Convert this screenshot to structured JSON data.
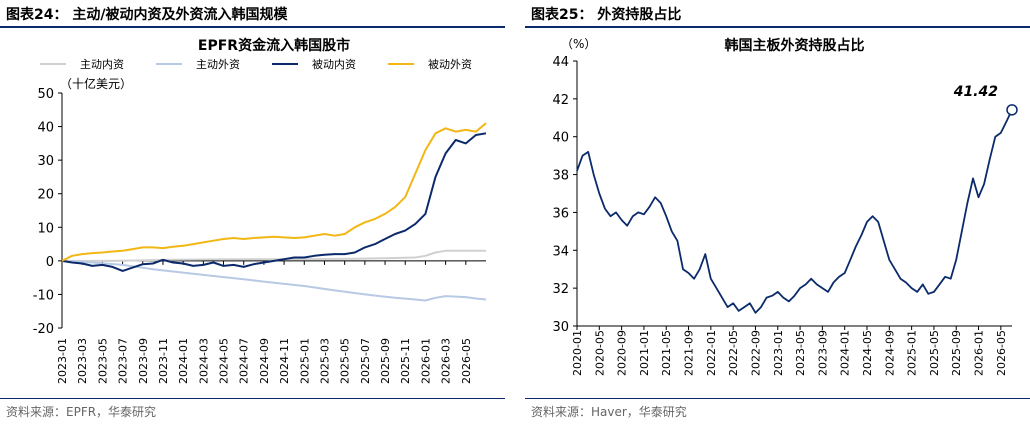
{
  "left": {
    "fig_title": "图表24：  主动/被动内资及外资流入韩国规模",
    "source": "资料来源：EPFR，华泰研究",
    "chart_data": {
      "type": "line",
      "title": "EPFR资金流入韩国股市",
      "unit": "（十亿美元）",
      "ylim": [
        -20,
        50
      ],
      "yticks": [
        -20,
        -10,
        0,
        10,
        20,
        30,
        40,
        50
      ],
      "x_range": [
        "2023-01",
        "2026-07"
      ],
      "x_ticks": [
        "2023-01",
        "2023-03",
        "2023-05",
        "2023-07",
        "2023-09",
        "2023-11",
        "2024-01",
        "2024-03",
        "2024-05",
        "2024-07",
        "2024-09",
        "2024-11",
        "2025-01",
        "2025-03",
        "2025-05",
        "2025-07",
        "2025-09",
        "2025-11",
        "2026-01",
        "2026-03",
        "2026-05"
      ],
      "series": [
        {
          "name": "主动内资",
          "color": "#d0d0d0",
          "points": [
            [
              "2023-01",
              0
            ],
            [
              "2023-06",
              0
            ],
            [
              "2023-12",
              0.3
            ],
            [
              "2024-06",
              0.5
            ],
            [
              "2024-12",
              0.5
            ],
            [
              "2025-06",
              0.6
            ],
            [
              "2025-09",
              0.8
            ],
            [
              "2025-12",
              1.0
            ],
            [
              "2026-01",
              1.5
            ],
            [
              "2026-02",
              2.5
            ],
            [
              "2026-03",
              3.0
            ],
            [
              "2026-07",
              3.0
            ]
          ]
        },
        {
          "name": "主动外资",
          "color": "#b8c9e4",
          "points": [
            [
              "2023-01",
              0
            ],
            [
              "2023-04",
              -0.5
            ],
            [
              "2023-07",
              -1.2
            ],
            [
              "2023-10",
              -2.5
            ],
            [
              "2024-01",
              -3.5
            ],
            [
              "2024-04",
              -4.5
            ],
            [
              "2024-07",
              -5.5
            ],
            [
              "2024-10",
              -6.5
            ],
            [
              "2025-01",
              -7.5
            ],
            [
              "2025-04",
              -8.8
            ],
            [
              "2025-07",
              -10.0
            ],
            [
              "2025-10",
              -11.0
            ],
            [
              "2025-12",
              -11.5
            ],
            [
              "2026-01",
              -11.8
            ],
            [
              "2026-02",
              -11.0
            ],
            [
              "2026-03",
              -10.5
            ],
            [
              "2026-05",
              -10.8
            ],
            [
              "2026-06",
              -11.2
            ],
            [
              "2026-07",
              -11.5
            ]
          ]
        },
        {
          "name": "被动内资",
          "color": "#0b2a6b",
          "points": [
            [
              "2023-01",
              0
            ],
            [
              "2023-02",
              -0.5
            ],
            [
              "2023-03",
              -0.8
            ],
            [
              "2023-04",
              -1.5
            ],
            [
              "2023-05",
              -1.2
            ],
            [
              "2023-06",
              -1.8
            ],
            [
              "2023-07",
              -3.0
            ],
            [
              "2023-08",
              -2.0
            ],
            [
              "2023-09",
              -1.0
            ],
            [
              "2023-10",
              -0.8
            ],
            [
              "2023-11",
              0.3
            ],
            [
              "2023-12",
              -0.5
            ],
            [
              "2024-01",
              -0.8
            ],
            [
              "2024-02",
              -1.5
            ],
            [
              "2024-03",
              -1.2
            ],
            [
              "2024-04",
              -0.5
            ],
            [
              "2024-05",
              -1.5
            ],
            [
              "2024-06",
              -1.2
            ],
            [
              "2024-07",
              -1.8
            ],
            [
              "2024-08",
              -1.0
            ],
            [
              "2024-09",
              -0.5
            ],
            [
              "2024-10",
              0.0
            ],
            [
              "2024-11",
              0.5
            ],
            [
              "2024-12",
              1.0
            ],
            [
              "2025-01",
              1.0
            ],
            [
              "2025-02",
              1.5
            ],
            [
              "2025-03",
              1.8
            ],
            [
              "2025-04",
              2.0
            ],
            [
              "2025-05",
              2.0
            ],
            [
              "2025-06",
              2.5
            ],
            [
              "2025-07",
              4.0
            ],
            [
              "2025-08",
              5.0
            ],
            [
              "2025-09",
              6.5
            ],
            [
              "2025-10",
              8.0
            ],
            [
              "2025-11",
              9.0
            ],
            [
              "2025-12",
              11.0
            ],
            [
              "2026-01",
              14.0
            ],
            [
              "2026-02",
              25.0
            ],
            [
              "2026-03",
              32.0
            ],
            [
              "2026-04",
              36.0
            ],
            [
              "2026-05",
              35.0
            ],
            [
              "2026-06",
              37.5
            ],
            [
              "2026-07",
              38.0
            ]
          ]
        },
        {
          "name": "被动外资",
          "color": "#f2b714",
          "points": [
            [
              "2023-01",
              0
            ],
            [
              "2023-02",
              1.5
            ],
            [
              "2023-03",
              2.0
            ],
            [
              "2023-04",
              2.3
            ],
            [
              "2023-05",
              2.5
            ],
            [
              "2023-06",
              2.8
            ],
            [
              "2023-07",
              3.0
            ],
            [
              "2023-08",
              3.5
            ],
            [
              "2023-09",
              4.0
            ],
            [
              "2023-10",
              4.0
            ],
            [
              "2023-11",
              3.8
            ],
            [
              "2023-12",
              4.2
            ],
            [
              "2024-01",
              4.5
            ],
            [
              "2024-02",
              5.0
            ],
            [
              "2024-03",
              5.5
            ],
            [
              "2024-04",
              6.0
            ],
            [
              "2024-05",
              6.5
            ],
            [
              "2024-06",
              6.8
            ],
            [
              "2024-07",
              6.5
            ],
            [
              "2024-08",
              6.8
            ],
            [
              "2024-09",
              7.0
            ],
            [
              "2024-10",
              7.2
            ],
            [
              "2024-11",
              7.0
            ],
            [
              "2024-12",
              6.8
            ],
            [
              "2025-01",
              7.0
            ],
            [
              "2025-02",
              7.5
            ],
            [
              "2025-03",
              8.0
            ],
            [
              "2025-04",
              7.5
            ],
            [
              "2025-05",
              8.0
            ],
            [
              "2025-06",
              10.0
            ],
            [
              "2025-07",
              11.5
            ],
            [
              "2025-08",
              12.5
            ],
            [
              "2025-09",
              14.0
            ],
            [
              "2025-10",
              16.0
            ],
            [
              "2025-11",
              19.0
            ],
            [
              "2025-12",
              26.0
            ],
            [
              "2026-01",
              33.0
            ],
            [
              "2026-02",
              38.0
            ],
            [
              "2026-03",
              39.5
            ],
            [
              "2026-04",
              38.5
            ],
            [
              "2026-05",
              39.0
            ],
            [
              "2026-06",
              38.5
            ],
            [
              "2026-07",
              41.0
            ]
          ]
        }
      ]
    }
  },
  "right": {
    "fig_title": "图表25：  外资持股占比",
    "source": "资料来源：Haver，华泰研究",
    "chart_data": {
      "type": "line",
      "title": "韩国主板外资持股占比",
      "unit": "（%）",
      "ylim": [
        30,
        44
      ],
      "yticks": [
        30,
        32,
        34,
        36,
        38,
        40,
        42,
        44
      ],
      "x_range": [
        "2020-01",
        "2026-07"
      ],
      "x_ticks": [
        "2020-01",
        "2020-05",
        "2020-09",
        "2021-01",
        "2021-05",
        "2021-09",
        "2022-01",
        "2022-05",
        "2022-09",
        "2023-01",
        "2023-05",
        "2023-09",
        "2024-01",
        "2024-05",
        "2024-09",
        "2025-01",
        "2025-05",
        "2025-09",
        "2026-01",
        "2026-05"
      ],
      "annotation": "41.42",
      "series": [
        {
          "name": "外资持股占比",
          "color": "#0b2a6b",
          "points": [
            [
              "2020-01",
              38.2
            ],
            [
              "2020-02",
              39.0
            ],
            [
              "2020-03",
              39.2
            ],
            [
              "2020-04",
              38.0
            ],
            [
              "2020-05",
              37.0
            ],
            [
              "2020-06",
              36.2
            ],
            [
              "2020-07",
              35.8
            ],
            [
              "2020-08",
              36.0
            ],
            [
              "2020-09",
              35.6
            ],
            [
              "2020-10",
              35.3
            ],
            [
              "2020-11",
              35.8
            ],
            [
              "2020-12",
              36.0
            ],
            [
              "2021-01",
              35.9
            ],
            [
              "2021-02",
              36.3
            ],
            [
              "2021-03",
              36.8
            ],
            [
              "2021-04",
              36.5
            ],
            [
              "2021-05",
              35.8
            ],
            [
              "2021-06",
              35.0
            ],
            [
              "2021-07",
              34.5
            ],
            [
              "2021-08",
              33.0
            ],
            [
              "2021-09",
              32.8
            ],
            [
              "2021-10",
              32.5
            ],
            [
              "2021-11",
              33.0
            ],
            [
              "2021-12",
              33.8
            ],
            [
              "2022-01",
              32.5
            ],
            [
              "2022-02",
              32.0
            ],
            [
              "2022-03",
              31.5
            ],
            [
              "2022-04",
              31.0
            ],
            [
              "2022-05",
              31.2
            ],
            [
              "2022-06",
              30.8
            ],
            [
              "2022-07",
              31.0
            ],
            [
              "2022-08",
              31.2
            ],
            [
              "2022-09",
              30.7
            ],
            [
              "2022-10",
              31.0
            ],
            [
              "2022-11",
              31.5
            ],
            [
              "2022-12",
              31.6
            ],
            [
              "2023-01",
              31.8
            ],
            [
              "2023-02",
              31.5
            ],
            [
              "2023-03",
              31.3
            ],
            [
              "2023-04",
              31.6
            ],
            [
              "2023-05",
              32.0
            ],
            [
              "2023-06",
              32.2
            ],
            [
              "2023-07",
              32.5
            ],
            [
              "2023-08",
              32.2
            ],
            [
              "2023-09",
              32.0
            ],
            [
              "2023-10",
              31.8
            ],
            [
              "2023-11",
              32.3
            ],
            [
              "2023-12",
              32.6
            ],
            [
              "2024-01",
              32.8
            ],
            [
              "2024-02",
              33.5
            ],
            [
              "2024-03",
              34.2
            ],
            [
              "2024-04",
              34.8
            ],
            [
              "2024-05",
              35.5
            ],
            [
              "2024-06",
              35.8
            ],
            [
              "2024-07",
              35.5
            ],
            [
              "2024-08",
              34.5
            ],
            [
              "2024-09",
              33.5
            ],
            [
              "2024-10",
              33.0
            ],
            [
              "2024-11",
              32.5
            ],
            [
              "2024-12",
              32.3
            ],
            [
              "2025-01",
              32.0
            ],
            [
              "2025-02",
              31.8
            ],
            [
              "2025-03",
              32.2
            ],
            [
              "2025-04",
              31.7
            ],
            [
              "2025-05",
              31.8
            ],
            [
              "2025-06",
              32.2
            ],
            [
              "2025-07",
              32.6
            ],
            [
              "2025-08",
              32.5
            ],
            [
              "2025-09",
              33.5
            ],
            [
              "2025-10",
              35.0
            ],
            [
              "2025-11",
              36.5
            ],
            [
              "2025-12",
              37.8
            ],
            [
              "2026-01",
              36.8
            ],
            [
              "2026-02",
              37.5
            ],
            [
              "2026-03",
              38.8
            ],
            [
              "2026-04",
              40.0
            ],
            [
              "2026-05",
              40.2
            ],
            [
              "2026-06",
              40.8
            ],
            [
              "2026-07",
              41.42
            ]
          ]
        }
      ]
    }
  }
}
